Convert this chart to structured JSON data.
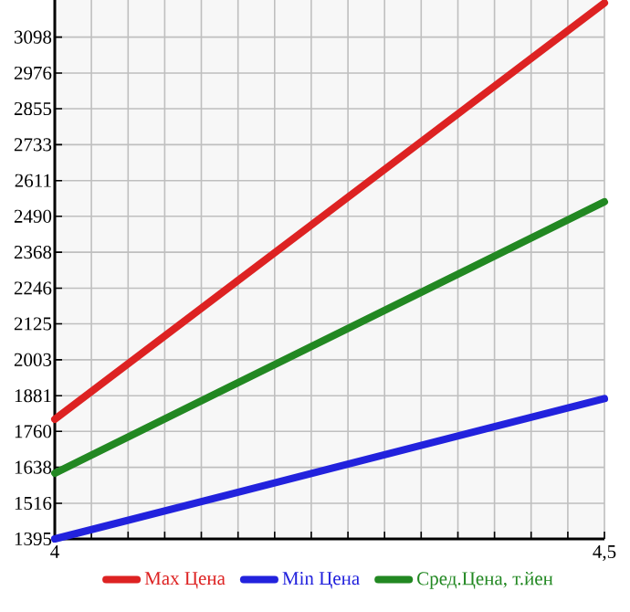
{
  "chart_data": {
    "type": "line",
    "xlim": [
      4,
      4.5
    ],
    "xticks": [
      4,
      {
        "value": 4.0333,
        "label": null
      },
      {
        "value": 4.0667,
        "label": null
      },
      {
        "value": 4.1,
        "label": null
      },
      {
        "value": 4.1333,
        "label": null
      },
      {
        "value": 4.1667,
        "label": null
      },
      {
        "value": 4.2,
        "label": null
      },
      {
        "value": 4.2333,
        "label": null
      },
      {
        "value": 4.2667,
        "label": null
      },
      {
        "value": 4.3,
        "label": null
      },
      {
        "value": 4.3333,
        "label": null
      },
      {
        "value": 4.3667,
        "label": null
      },
      {
        "value": 4.4,
        "label": null
      },
      {
        "value": 4.4333,
        "label": null
      },
      {
        "value": 4.4667,
        "label": null
      },
      {
        "value": 4.5,
        "label": "4,5"
      }
    ],
    "ylim": [
      1395,
      3224
    ],
    "yticks": [
      1395,
      1516,
      1638,
      1760,
      1881,
      2003,
      2125,
      2246,
      2368,
      2490,
      2611,
      2733,
      2855,
      2976,
      3098
    ],
    "x": [
      4,
      4.5
    ],
    "series": [
      {
        "name": "Max Цена",
        "color": "#dd2222",
        "values": [
          1801,
          3214
        ]
      },
      {
        "name": "Min Цена",
        "color": "#2222dd",
        "values": [
          1395,
          1871
        ]
      },
      {
        "name": "Сред.Цена, т.йен",
        "color": "#228822",
        "values": [
          1618,
          2539
        ]
      }
    ],
    "grid": true,
    "legend": "bottom",
    "marker": "none",
    "line_style": "solid"
  }
}
